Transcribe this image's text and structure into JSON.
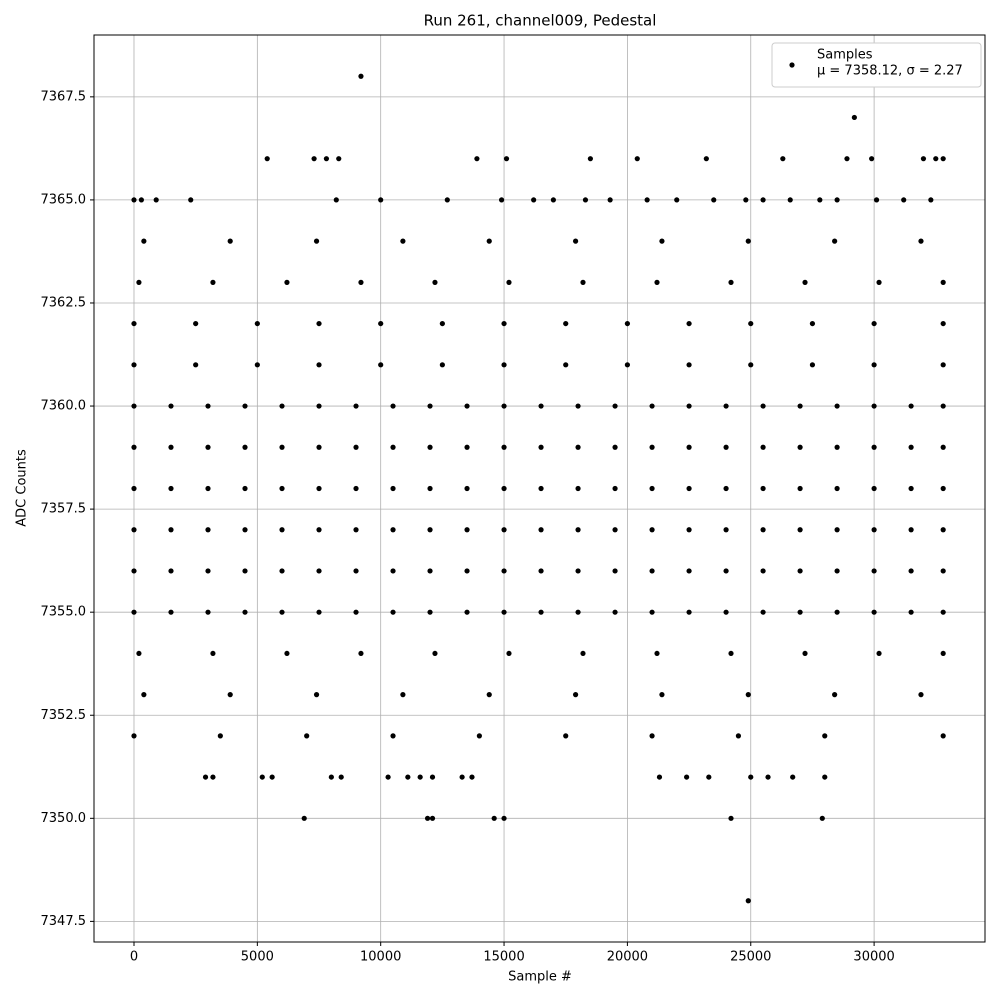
{
  "chart_data": {
    "type": "scatter",
    "title": "Run 261, channel009, Pedestal",
    "x_label": "Sample #",
    "y_label": "ADC Counts",
    "xlim": [
      -1621,
      34495
    ],
    "ylim": [
      7347,
      7369
    ],
    "xticks": [
      0,
      5000,
      10000,
      15000,
      20000,
      25000,
      30000
    ],
    "yticks": [
      7347.5,
      {
        "value": 7350,
        "label": "7350.0"
      },
      7352.5,
      {
        "value": 7355,
        "label": "7355.0"
      },
      7357.5,
      {
        "value": 7360,
        "label": "7360.0"
      },
      7362.5,
      {
        "value": 7365,
        "label": "7365.0"
      },
      7367.5
    ],
    "grid": true,
    "legend": "upper right",
    "annotation": "μ = 7358.12, σ = 2.27",
    "series": [
      {
        "name": "Samples",
        "color": "#000000",
        "x": [
          0,
          1500,
          3000,
          4500,
          6000,
          7500,
          9000,
          10500,
          12000,
          13500,
          15000,
          16500,
          18000,
          19500,
          21000,
          22500,
          24000,
          25500,
          27000,
          28500,
          30000,
          31500,
          32800,
          0,
          1500,
          3000,
          4500,
          6000,
          7500,
          9000,
          10500,
          12000,
          13500,
          15000,
          16500,
          18000,
          19500,
          21000,
          22500,
          24000,
          25500,
          27000,
          28500,
          30000,
          31500,
          32800,
          0,
          1500,
          3000,
          4500,
          6000,
          7500,
          9000,
          10500,
          12000,
          13500,
          15000,
          16500,
          18000,
          19500,
          21000,
          22500,
          24000,
          25500,
          27000,
          28500,
          30000,
          31500,
          32800,
          0,
          1500,
          3000,
          4500,
          6000,
          7500,
          9000,
          10500,
          12000,
          13500,
          15000,
          16500,
          18000,
          19500,
          21000,
          22500,
          24000,
          25500,
          27000,
          28500,
          30000,
          31500,
          32800,
          0,
          1500,
          3000,
          4500,
          6000,
          7500,
          9000,
          10500,
          12000,
          13500,
          15000,
          16500,
          18000,
          19500,
          21000,
          22500,
          24000,
          25500,
          27000,
          28500,
          30000,
          31500,
          32800,
          0,
          1500,
          3000,
          4500,
          6000,
          7500,
          9000,
          10500,
          12000,
          13500,
          15000,
          16500,
          18000,
          19500,
          21000,
          22500,
          24000,
          25500,
          27000,
          28500,
          30000,
          31500,
          32800,
          0,
          2500,
          5000,
          7500,
          10000,
          12500,
          15000,
          17500,
          20000,
          22500,
          25000,
          27500,
          30000,
          32800,
          0,
          2500,
          5000,
          7500,
          10000,
          12500,
          15000,
          17500,
          20000,
          22500,
          25000,
          27500,
          30000,
          32800,
          200,
          3200,
          6200,
          9200,
          12200,
          15200,
          18200,
          21200,
          24200,
          27200,
          30200,
          32800,
          200,
          3200,
          6200,
          9200,
          12200,
          15200,
          18200,
          21200,
          24200,
          27200,
          30200,
          32800,
          400,
          3900,
          7400,
          10900,
          14400,
          17900,
          21400,
          24900,
          28400,
          31900,
          400,
          3900,
          7400,
          10900,
          14400,
          17900,
          21400,
          24900,
          28400,
          31900,
          0,
          3500,
          7000,
          10500,
          14000,
          17500,
          21000,
          24500,
          28000,
          32800,
          2900,
          3200,
          5200,
          5600,
          8000,
          8400,
          10300,
          11100,
          11600,
          12100,
          13300,
          13700,
          21300,
          22400,
          23300,
          25000,
          25700,
          26700,
          28000,
          6900,
          11900,
          12100,
          14600,
          15000,
          24200,
          27900,
          24900,
          0,
          300,
          900,
          2300,
          8200,
          10000,
          12700,
          14900,
          16200,
          17000,
          18300,
          19300,
          20800,
          22000,
          23500,
          24800,
          25500,
          26600,
          27800,
          28500,
          30100,
          31200,
          32300,
          5400,
          7300,
          7800,
          8300,
          13900,
          15100,
          18500,
          20400,
          23200,
          26300,
          28900,
          29900,
          32000,
          32500,
          32800,
          29200,
          9200
        ],
        "values": [
          7355,
          7355,
          7355,
          7355,
          7355,
          7355,
          7355,
          7355,
          7355,
          7355,
          7355,
          7355,
          7355,
          7355,
          7355,
          7355,
          7355,
          7355,
          7355,
          7355,
          7355,
          7355,
          7355,
          7356,
          7356,
          7356,
          7356,
          7356,
          7356,
          7356,
          7356,
          7356,
          7356,
          7356,
          7356,
          7356,
          7356,
          7356,
          7356,
          7356,
          7356,
          7356,
          7356,
          7356,
          7356,
          7356,
          7357,
          7357,
          7357,
          7357,
          7357,
          7357,
          7357,
          7357,
          7357,
          7357,
          7357,
          7357,
          7357,
          7357,
          7357,
          7357,
          7357,
          7357,
          7357,
          7357,
          7357,
          7357,
          7357,
          7358,
          7358,
          7358,
          7358,
          7358,
          7358,
          7358,
          7358,
          7358,
          7358,
          7358,
          7358,
          7358,
          7358,
          7358,
          7358,
          7358,
          7358,
          7358,
          7358,
          7358,
          7358,
          7358,
          7359,
          7359,
          7359,
          7359,
          7359,
          7359,
          7359,
          7359,
          7359,
          7359,
          7359,
          7359,
          7359,
          7359,
          7359,
          7359,
          7359,
          7359,
          7359,
          7359,
          7359,
          7359,
          7359,
          7360,
          7360,
          7360,
          7360,
          7360,
          7360,
          7360,
          7360,
          7360,
          7360,
          7360,
          7360,
          7360,
          7360,
          7360,
          7360,
          7360,
          7360,
          7360,
          7360,
          7360,
          7360,
          7360,
          7361,
          7361,
          7361,
          7361,
          7361,
          7361,
          7361,
          7361,
          7361,
          7361,
          7361,
          7361,
          7361,
          7361,
          7362,
          7362,
          7362,
          7362,
          7362,
          7362,
          7362,
          7362,
          7362,
          7362,
          7362,
          7362,
          7362,
          7362,
          7354,
          7354,
          7354,
          7354,
          7354,
          7354,
          7354,
          7354,
          7354,
          7354,
          7354,
          7354,
          7363,
          7363,
          7363,
          7363,
          7363,
          7363,
          7363,
          7363,
          7363,
          7363,
          7363,
          7363,
          7353,
          7353,
          7353,
          7353,
          7353,
          7353,
          7353,
          7353,
          7353,
          7353,
          7364,
          7364,
          7364,
          7364,
          7364,
          7364,
          7364,
          7364,
          7364,
          7364,
          7352,
          7352,
          7352,
          7352,
          7352,
          7352,
          7352,
          7352,
          7352,
          7352,
          7351,
          7351,
          7351,
          7351,
          7351,
          7351,
          7351,
          7351,
          7351,
          7351,
          7351,
          7351,
          7351,
          7351,
          7351,
          7351,
          7351,
          7351,
          7351,
          7350,
          7350,
          7350,
          7350,
          7350,
          7350,
          7350,
          7348,
          7365,
          7365,
          7365,
          7365,
          7365,
          7365,
          7365,
          7365,
          7365,
          7365,
          7365,
          7365,
          7365,
          7365,
          7365,
          7365,
          7365,
          7365,
          7365,
          7365,
          7365,
          7365,
          7365,
          7366,
          7366,
          7366,
          7366,
          7366,
          7366,
          7366,
          7366,
          7366,
          7366,
          7366,
          7366,
          7366,
          7366,
          7366,
          7367,
          7368
        ]
      }
    ]
  }
}
